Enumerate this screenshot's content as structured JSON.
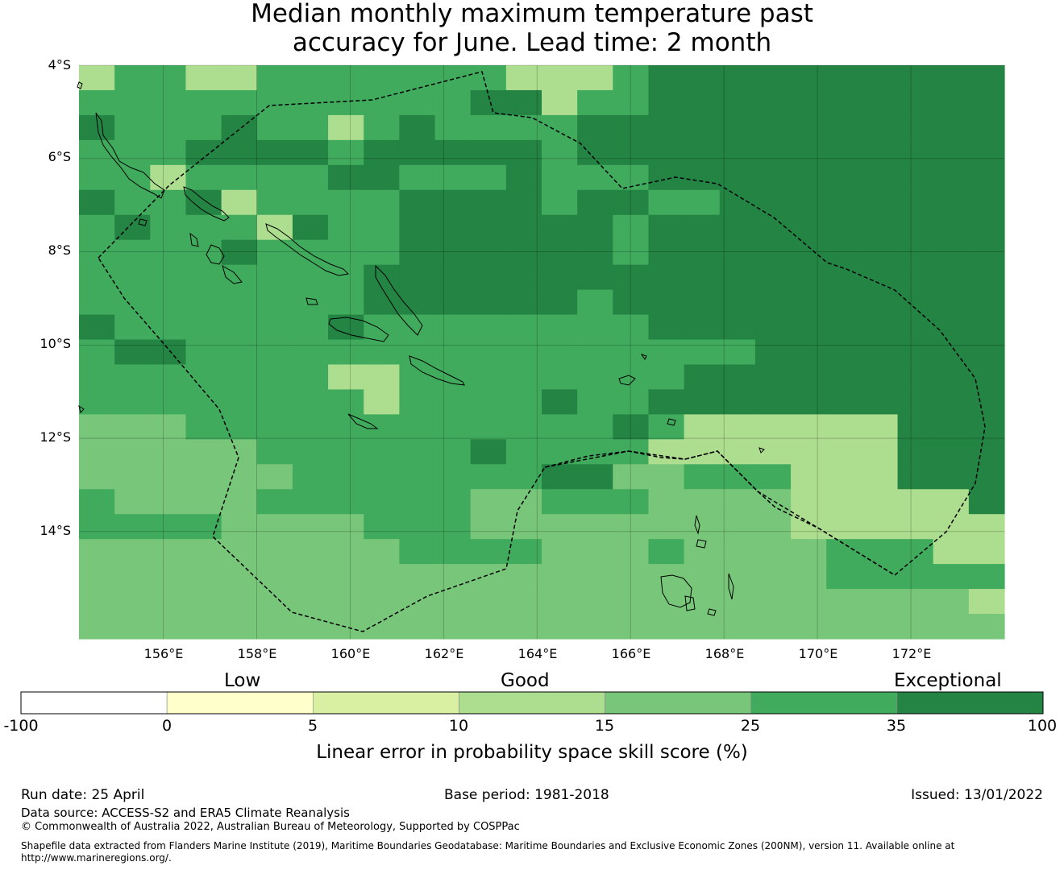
{
  "title": {
    "line1": "Median monthly maximum temperature past",
    "line2": "accuracy for June. Lead time: 2 month"
  },
  "map": {
    "lat_ticks": [
      "4°S",
      "6°S",
      "8°S",
      "10°S",
      "12°S",
      "14°S"
    ],
    "lon_ticks": [
      "156°E",
      "158°E",
      "160°E",
      "162°E",
      "164°E",
      "166°E",
      "168°E",
      "170°E",
      "172°E"
    ],
    "extent": {
      "lon_min": 154.2,
      "lon_max": 174.0,
      "lat_min": -16.3,
      "lat_max": -4.0
    },
    "grid_lon_values": [
      156,
      158,
      160,
      162,
      164,
      166,
      168,
      170,
      172
    ],
    "grid_lat_values": [
      -4,
      -6,
      -8,
      -10,
      -12,
      -14
    ],
    "cell_rows_north_to_south": [
      "DCCEECCCCCCCDDDCFFFFFFFFFF",
      "CCCCCCCCCCCFFDCCFFFFFFFFFF",
      "FCCCFCCDCFCCCCFFFFFFFFFFFF",
      "CCCFFFFCFFFFFCFFFFFFFFFFFF",
      "CCDCCCCFFCCCFCCCFFFFFFFFFF",
      "FCCFECCCCFFFFCFFCCFFFFFFFF",
      "CFCCCEFCCFFFFFFCFFFFFFFFFF",
      "CCCCFCCCCFFFFFFCFFFFFFFFFF",
      "CCCCCCCCFFFFFFFFFFFFFFFFFF",
      "CCCCCCCCFFFFFFCFFFFFFFFFFF",
      "FCCCCCCFCCCCCCCCFFFFFFFFFF",
      "CFFCCCCCCCCCCCCCCCCFFFFFFF",
      "CCCCCCCDDCCCCCCCCFFFFFFFFF",
      "CCCCCCCCDCCCCFCCFFFFFFFFFF",
      "BBBCCCCCCCCCCCCFCDDDDDDFFF",
      "BBBBBCCCCCCFCCCCDDDDDDDFFF",
      "BBBBBBCCCCCCCFFBBCCCDDDFFF",
      "CBBBBCCCCCCBBCCCBBBBDDDDDF",
      "CCCCBBBBCCCBBBBBBBBBDDDDDD",
      "BBBBBBBBBCCCCBBBCBBBBCCCDD",
      "BBBBBBBBBBBBBBBBBBBBBCCCCC",
      "BBBBBBBBBBBBBBBBBBBBBBBBBD",
      "BBBBBBBBBBBBBBBBBBBBBBBBBB"
    ]
  },
  "legend": {
    "category_labels": [
      "Low",
      "Good",
      "Exceptional"
    ],
    "boundaries": [
      "-100",
      "0",
      "5",
      "10",
      "15",
      "25",
      "35",
      "100"
    ],
    "colors": [
      "#ffffff",
      "#ffffcc",
      "#d9f0a3",
      "#addd8e",
      "#78c679",
      "#41ab5d",
      "#238443"
    ],
    "title": "Linear error in probability space skill score (%)"
  },
  "footer": {
    "run_date": "Run date: 25 April",
    "base_period": "Base period: 1981-2018",
    "issued": "Issued: 13/01/2022",
    "data_source": "Data source: ACCESS-S2 and ERA5 Climate Reanalysis",
    "copyright": "© Commonwealth of Australia 2022, Australian Bureau of Meteorology, Supported by COSPPac",
    "shapefile_line1": "Shapefile data extracted from Flanders Marine Institute (2019), Maritime Boundaries Geodatabase: Maritime Boundaries and Exclusive Economic Zones (200NM), version 11. Available online at",
    "shapefile_line2": "http://www.marineregions.org/."
  }
}
